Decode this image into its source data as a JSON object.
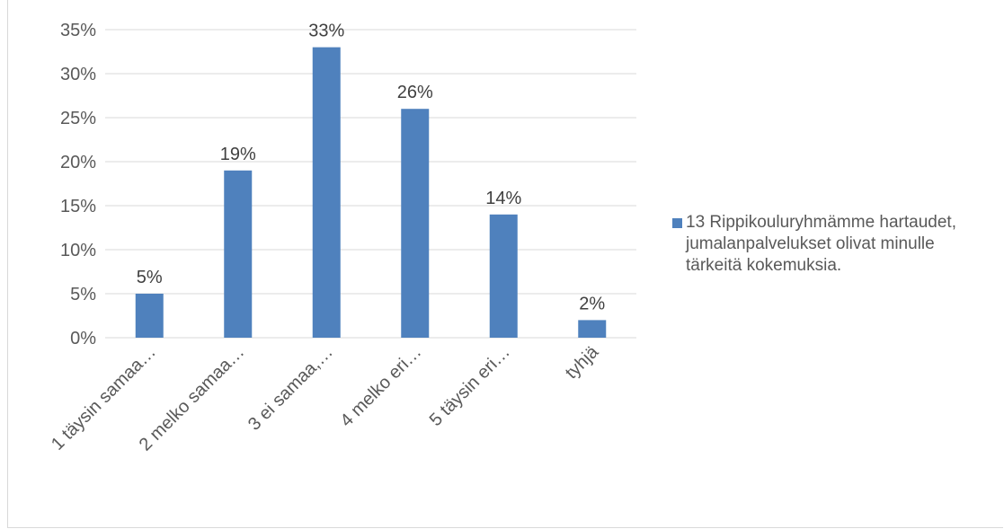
{
  "chart_data": {
    "type": "bar",
    "categories": [
      "1 täysin samaa…",
      "2 melko samaa…",
      "3 ei samaa,…",
      "4 melko eri…",
      "5 täysin eri…",
      "tyhjä"
    ],
    "series": [
      {
        "name": "13 Rippikouluryhmämme hartaudet, jumalanpalvelukset olivat minulle tärkeitä kokemuksia.",
        "values": [
          5,
          19,
          33,
          26,
          14,
          2
        ],
        "labels": [
          "5%",
          "19%",
          "33%",
          "26%",
          "14%",
          "2%"
        ]
      }
    ],
    "yticks": [
      "0%",
      "5%",
      "10%",
      "15%",
      "20%",
      "25%",
      "30%",
      "35%"
    ],
    "ylim": [
      0,
      35
    ],
    "grid": true,
    "legend_position": "right",
    "bar_color": "#4f81bd",
    "grid_color": "#d9d9d9"
  }
}
